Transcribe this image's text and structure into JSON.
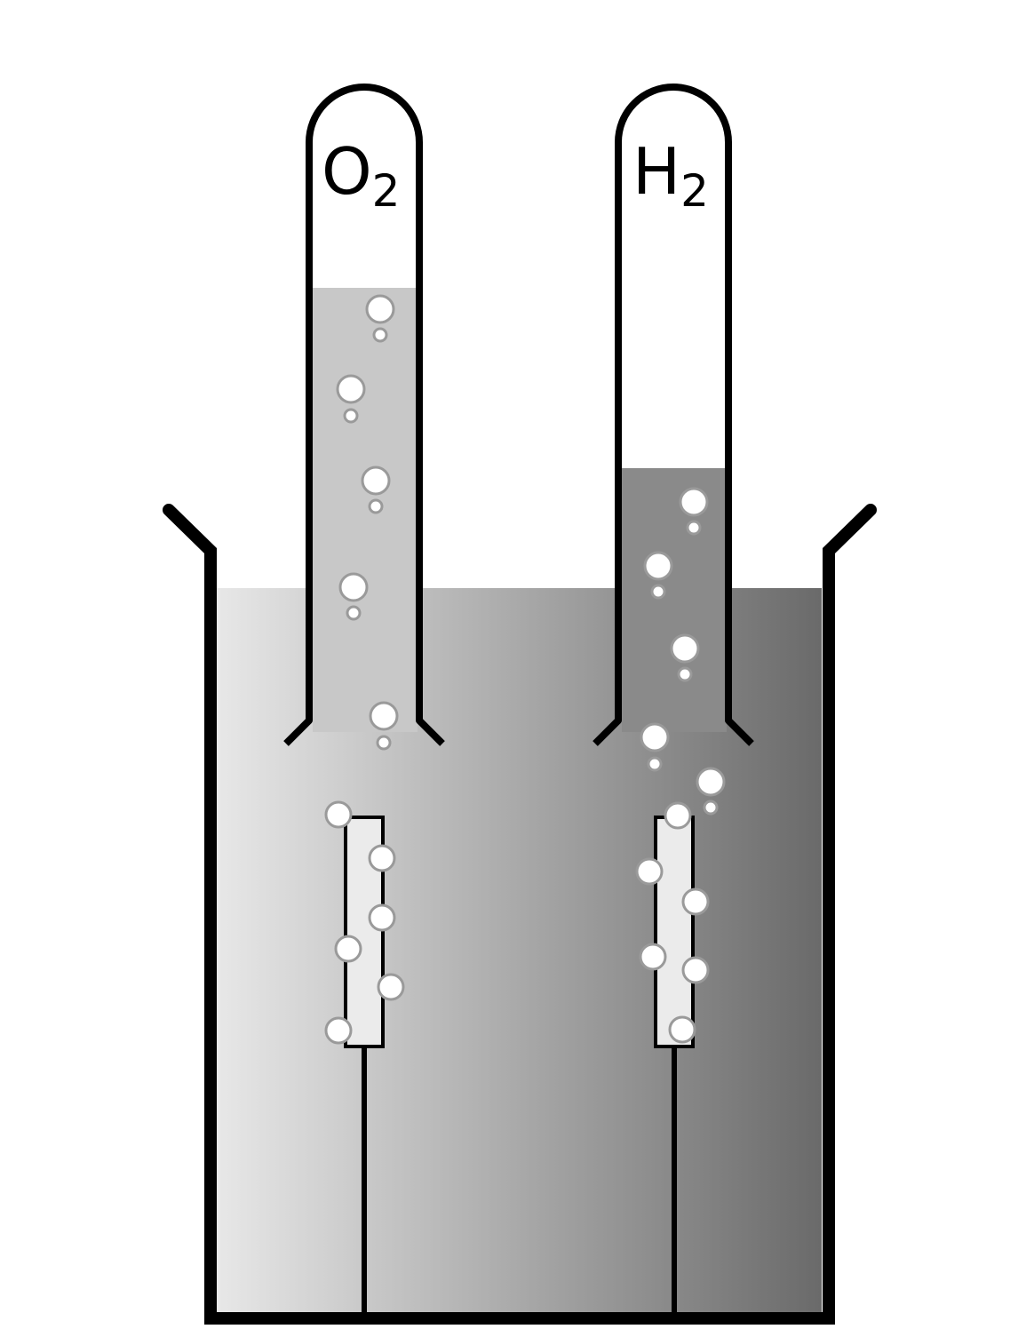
{
  "diagram": {
    "tubes": [
      {
        "id": "anode",
        "label": "O",
        "subscript": "2"
      },
      {
        "id": "cathode",
        "label": "H",
        "subscript": "2"
      }
    ],
    "colors": {
      "liquid_light": "#e8e8e8",
      "liquid_dark": "#6a6a6a",
      "tube_liquid_left": "#c8c8c8",
      "tube_liquid_right": "#8a8a8a",
      "outline": "#000000",
      "electrode": "#ebebeb"
    }
  }
}
